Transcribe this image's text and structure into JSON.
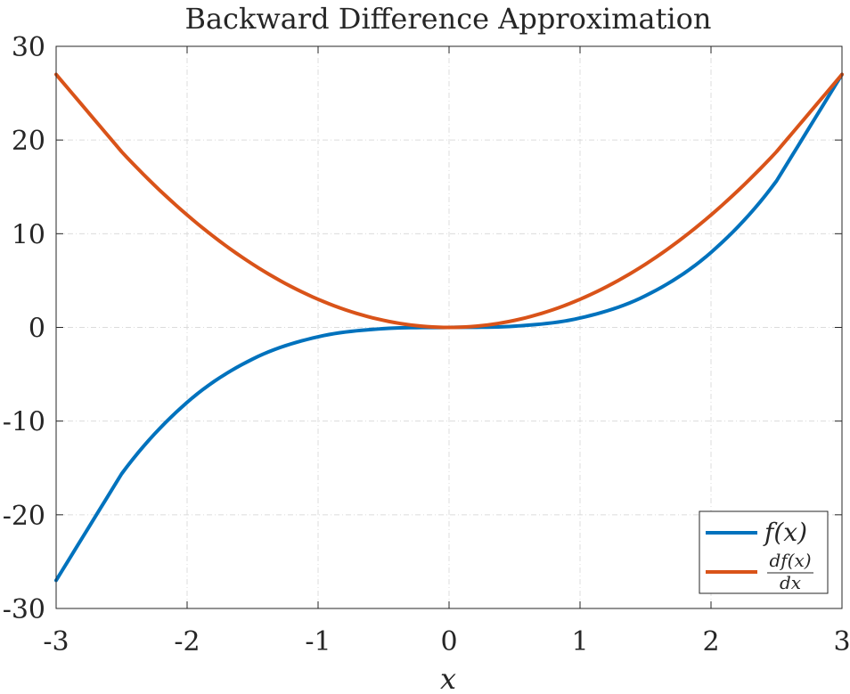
{
  "chart_data": {
    "type": "line",
    "title": "Backward Difference Approximation",
    "xlabel": "x",
    "ylabel": "",
    "xlim": [
      -3,
      3
    ],
    "ylim": [
      -30,
      30
    ],
    "xticks": [
      "-3",
      "-2",
      "-1",
      "0",
      "1",
      "2",
      "3"
    ],
    "yticks": [
      "30",
      "20",
      "10",
      "0",
      "-10",
      "-20",
      "-30"
    ],
    "grid": true,
    "legend_position": "bottom-right",
    "series": [
      {
        "name": "f(x)",
        "color": "#0072BD",
        "x": [
          -3,
          -2.5,
          -2,
          -1.5,
          -1,
          -0.5,
          0,
          0.5,
          1,
          1.5,
          2,
          2.5,
          3
        ],
        "y": [
          -27,
          -15.63,
          -8,
          -3.38,
          -1,
          -0.13,
          0,
          0.13,
          1,
          3.38,
          8,
          15.63,
          27
        ]
      },
      {
        "name": "df(x)/dx",
        "color": "#D95319",
        "x": [
          -3,
          -2.5,
          -2,
          -1.5,
          -1,
          -0.5,
          0,
          0.5,
          1,
          1.5,
          2,
          2.5,
          3
        ],
        "y": [
          27,
          18.75,
          12,
          6.75,
          3,
          0.75,
          0,
          0.75,
          3,
          6.75,
          12,
          18.75,
          27
        ]
      }
    ]
  },
  "legend": {
    "f_label": "f(x)",
    "d_num": "df(x)",
    "d_den": "dx"
  }
}
